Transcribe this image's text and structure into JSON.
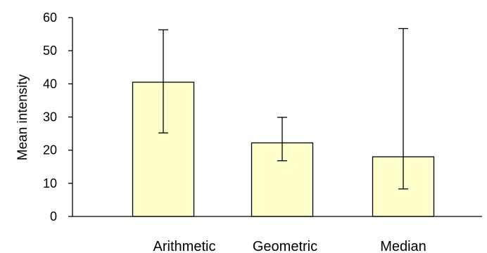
{
  "chart_data": {
    "type": "bar",
    "title": "",
    "xlabel": "",
    "ylabel": "Mean intensity",
    "categories": [
      "Arithmetic",
      "Geometric",
      "Median"
    ],
    "values": [
      40.5,
      22.2,
      18.0
    ],
    "error_low": [
      25.2,
      16.8,
      8.3
    ],
    "error_high": [
      56.3,
      29.9,
      56.7
    ],
    "ylim": [
      0,
      60
    ],
    "yticks": [
      0,
      10,
      20,
      30,
      40,
      50,
      60
    ],
    "grid": false,
    "legend": "none",
    "colors": {
      "bar_fill": "#ffffcc",
      "bar_stroke": "#000000",
      "axis": "#000000",
      "error_bar": "#000000"
    }
  }
}
